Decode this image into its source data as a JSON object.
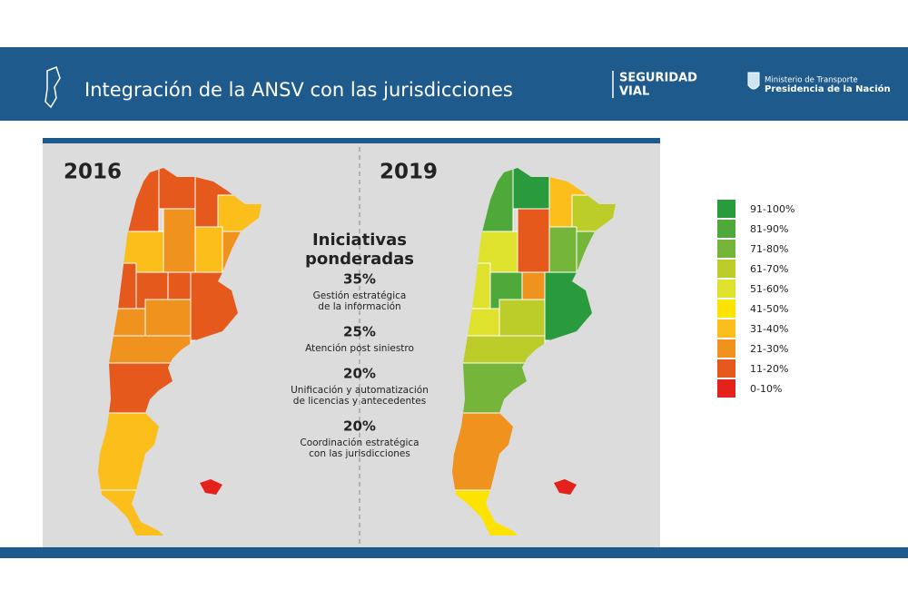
{
  "header": {
    "title": "Integración de la ANSV con las jurisdicciones",
    "brand": [
      "SEGURIDAD",
      "VIAL"
    ],
    "ministry": [
      "Ministerio de Transporte",
      "Presidencia de la Nación"
    ]
  },
  "maps": [
    {
      "year": "2016"
    },
    {
      "year": "2019"
    }
  ],
  "panel": {
    "title": [
      "Iniciativas",
      "ponderadas"
    ],
    "items": [
      {
        "weight": "35%",
        "label": [
          "Gestión estratégica",
          "de la información"
        ]
      },
      {
        "weight": "25%",
        "label": [
          "Atención post siniestro"
        ]
      },
      {
        "weight": "20%",
        "label": [
          "Unificación y automatización",
          "de licencias y antecedentes"
        ]
      },
      {
        "weight": "20%",
        "label": [
          "Coordinación estratégica",
          "con las jurisdicciones"
        ]
      }
    ]
  },
  "legend": [
    {
      "label": "91-100%",
      "color": "#2a9b3c"
    },
    {
      "label": "81-90%",
      "color": "#4ea93a"
    },
    {
      "label": "71-80%",
      "color": "#74b53a"
    },
    {
      "label": "61-70%",
      "color": "#bccd2a"
    },
    {
      "label": "51-60%",
      "color": "#dfe22c"
    },
    {
      "label": "41-50%",
      "color": "#ffe300"
    },
    {
      "label": "31-40%",
      "color": "#fbbe1a"
    },
    {
      "label": "21-30%",
      "color": "#f0921e"
    },
    {
      "label": "11-20%",
      "color": "#e55a1c"
    },
    {
      "label": "0-10%",
      "color": "#e3231b"
    }
  ]
}
